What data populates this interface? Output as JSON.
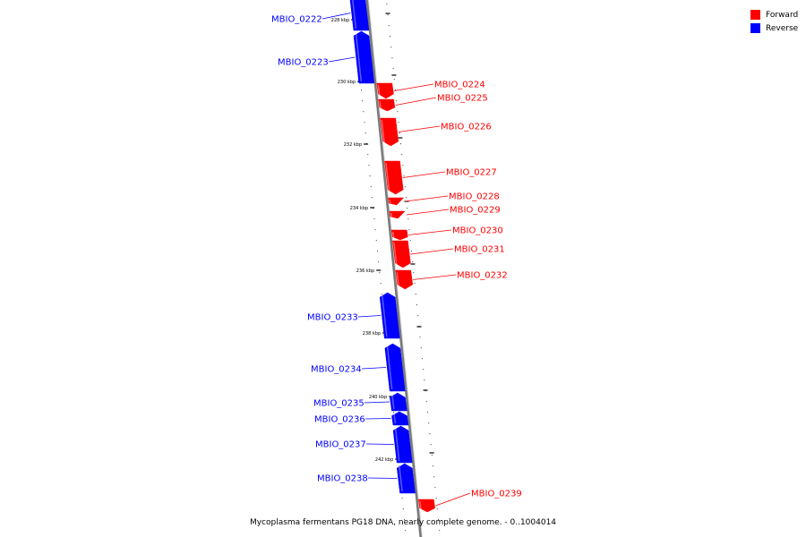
{
  "colors": {
    "forward": "#ff0000",
    "reverse": "#0000ff",
    "backbone": "#888888"
  },
  "legend": [
    {
      "label": "Forward",
      "color": "#ff0000"
    },
    {
      "label": "Reverse",
      "color": "#0000ff"
    }
  ],
  "caption": "Mycoplasma fermentans PG18 DNA, nearly complete genome. - 0..1004014",
  "ticks": [
    "228 kbp",
    "230 kbp",
    "232 kbp",
    "234 kbp",
    "236 kbp",
    "238 kbp",
    "240 kbp",
    "242 kbp"
  ],
  "genes": [
    {
      "name": "MBIO_0222",
      "strand": "reverse"
    },
    {
      "name": "MBIO_0223",
      "strand": "reverse"
    },
    {
      "name": "MBIO_0224",
      "strand": "forward"
    },
    {
      "name": "MBIO_0225",
      "strand": "forward"
    },
    {
      "name": "MBIO_0226",
      "strand": "forward"
    },
    {
      "name": "MBIO_0227",
      "strand": "forward"
    },
    {
      "name": "MBIO_0228",
      "strand": "forward"
    },
    {
      "name": "MBIO_0229",
      "strand": "forward"
    },
    {
      "name": "MBIO_0230",
      "strand": "forward"
    },
    {
      "name": "MBIO_0231",
      "strand": "forward"
    },
    {
      "name": "MBIO_0232",
      "strand": "forward"
    },
    {
      "name": "MBIO_0233",
      "strand": "reverse"
    },
    {
      "name": "MBIO_0234",
      "strand": "reverse"
    },
    {
      "name": "MBIO_0235",
      "strand": "reverse"
    },
    {
      "name": "MBIO_0236",
      "strand": "reverse"
    },
    {
      "name": "MBIO_0237",
      "strand": "reverse"
    },
    {
      "name": "MBIO_0238",
      "strand": "reverse"
    },
    {
      "name": "MBIO_0239",
      "strand": "forward"
    }
  ]
}
